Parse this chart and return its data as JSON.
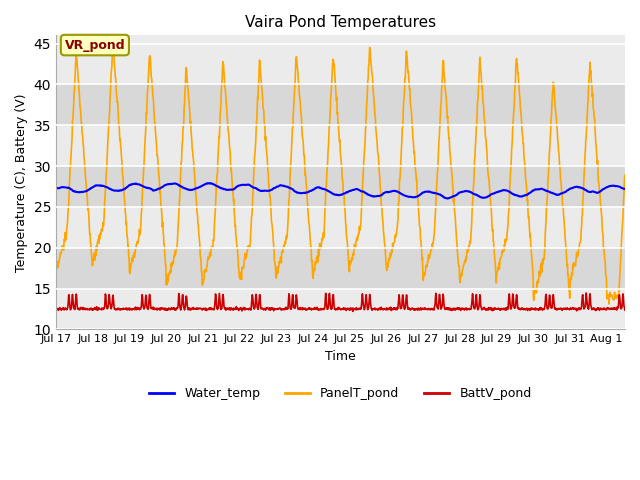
{
  "title": "Vaira Pond Temperatures",
  "xlabel": "Time",
  "ylabel": "Temperature (C), Battery (V)",
  "ylim": [
    10,
    46
  ],
  "yticks": [
    10,
    15,
    20,
    25,
    30,
    35,
    40,
    45
  ],
  "annotation_label": "VR_pond",
  "annotation_text_color": "#8B0000",
  "annotation_box_facecolor": "#FFFFC0",
  "annotation_box_edgecolor": "#999900",
  "bg_color_light": "#EBEBEB",
  "bg_color_dark": "#D8D8D8",
  "fig_bg_color": "#FFFFFF",
  "water_temp_color": "#0000FF",
  "panel_temp_color": "#FFA500",
  "batt_v_color": "#CC0000",
  "legend_labels": [
    "Water_temp",
    "PanelT_pond",
    "BattV_pond"
  ],
  "x_tick_labels": [
    "Jul 17",
    "Jul 18",
    "Jul 19",
    "Jul 20",
    "Jul 21",
    "Jul 22",
    "Jul 23",
    "Jul 24",
    "Jul 25",
    "Jul 26",
    "Jul 27",
    "Jul 28",
    "Jul 29",
    "Jul 30",
    "Jul 31",
    "Aug 1"
  ],
  "num_days": 15.5,
  "samples_per_day": 96
}
